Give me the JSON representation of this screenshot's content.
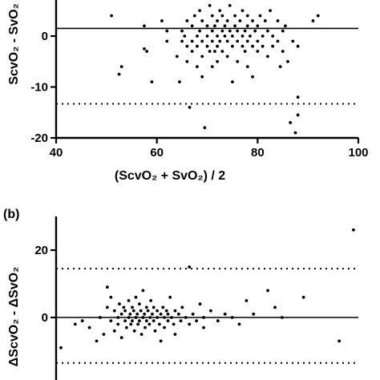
{
  "chart_data": [
    {
      "type": "scatter",
      "panel_label": "",
      "xlabel": "(ScvO₂ + SvO₂) / 2",
      "ylabel": "ScvO₂ - SvO₂",
      "xlim": [
        40,
        100
      ],
      "ylim": [
        -20,
        10
      ],
      "xticks": [
        40,
        60,
        80,
        100
      ],
      "yticks": [
        -20,
        -10,
        0
      ],
      "mean_line": 1.5,
      "limit_lines": [
        -13.3
      ],
      "points": [
        [
          51,
          4
        ],
        [
          53,
          -6
        ],
        [
          52.5,
          -7.5
        ],
        [
          57.5,
          2
        ],
        [
          57.5,
          -2.5
        ],
        [
          58,
          -3
        ],
        [
          59,
          -9
        ],
        [
          61,
          3
        ],
        [
          62,
          1
        ],
        [
          62,
          -1
        ],
        [
          64,
          -4
        ],
        [
          64.5,
          -9
        ],
        [
          65,
          1
        ],
        [
          65,
          -1
        ],
        [
          65.5,
          0
        ],
        [
          66,
          3
        ],
        [
          66,
          -2
        ],
        [
          66,
          -5
        ],
        [
          66.5,
          -14
        ],
        [
          67,
          2
        ],
        [
          67,
          -1
        ],
        [
          67,
          -3
        ],
        [
          67.5,
          4
        ],
        [
          68,
          0
        ],
        [
          68,
          -2
        ],
        [
          68,
          -6
        ],
        [
          68.5,
          1
        ],
        [
          68.5,
          5
        ],
        [
          69,
          3
        ],
        [
          69,
          -1
        ],
        [
          69,
          -4
        ],
        [
          69,
          -8
        ],
        [
          69.5,
          -18
        ],
        [
          70,
          2
        ],
        [
          70,
          0
        ],
        [
          70,
          -2
        ],
        [
          70.5,
          6
        ],
        [
          70.5,
          -3
        ],
        [
          71,
          1
        ],
        [
          71,
          -1
        ],
        [
          71,
          4
        ],
        [
          71,
          -6
        ],
        [
          71.5,
          2
        ],
        [
          71.5,
          -3
        ],
        [
          72,
          0
        ],
        [
          72,
          3
        ],
        [
          72,
          -2
        ],
        [
          72,
          -5
        ],
        [
          72.5,
          5
        ],
        [
          72.5,
          -1
        ],
        [
          73,
          1
        ],
        [
          73,
          -3
        ],
        [
          73,
          4
        ],
        [
          73.5,
          2
        ],
        [
          73.5,
          0
        ],
        [
          74,
          -1
        ],
        [
          74,
          3
        ],
        [
          74,
          -4
        ],
        [
          74.5,
          1
        ],
        [
          74.5,
          6
        ],
        [
          75,
          0
        ],
        [
          75,
          -2
        ],
        [
          75,
          -9
        ],
        [
          75.5,
          2
        ],
        [
          75.5,
          4
        ],
        [
          76,
          -1
        ],
        [
          76,
          1
        ],
        [
          76,
          -5
        ],
        [
          76.5,
          3
        ],
        [
          77,
          0
        ],
        [
          77,
          -2
        ],
        [
          77,
          5
        ],
        [
          77.5,
          1
        ],
        [
          77.5,
          -3
        ],
        [
          78,
          2
        ],
        [
          78,
          -1
        ],
        [
          78,
          4
        ],
        [
          78,
          -6
        ],
        [
          78.5,
          0
        ],
        [
          79,
          3
        ],
        [
          79,
          -2
        ],
        [
          79,
          -8
        ],
        [
          79.5,
          1
        ],
        [
          80,
          2
        ],
        [
          80,
          -1
        ],
        [
          80,
          -3
        ],
        [
          80.5,
          4
        ],
        [
          81,
          0
        ],
        [
          81,
          -2
        ],
        [
          81.5,
          3
        ],
        [
          82,
          1
        ],
        [
          82,
          -4
        ],
        [
          82.5,
          5
        ],
        [
          83,
          0
        ],
        [
          83,
          -2
        ],
        [
          84,
          3
        ],
        [
          84,
          -1
        ],
        [
          84.5,
          -6
        ],
        [
          85,
          1
        ],
        [
          85,
          -3
        ],
        [
          85.5,
          2
        ],
        [
          86,
          -5
        ],
        [
          86.5,
          -17
        ],
        [
          87,
          -1
        ],
        [
          87.5,
          -19
        ],
        [
          88,
          -12
        ],
        [
          88,
          -15.5
        ],
        [
          88,
          -2
        ],
        [
          91,
          3
        ],
        [
          92,
          4
        ]
      ]
    },
    {
      "type": "scatter",
      "panel_label": "(b)",
      "xlabel": "",
      "ylabel": "ΔScvO₂ - ΔSvO₂",
      "ylim": [
        -20,
        30
      ],
      "yticks": [
        0,
        20
      ],
      "mean_line": 0,
      "limit_lines": [
        14.5,
        -13.5
      ],
      "points": [
        [
          -10,
          -9
        ],
        [
          -8,
          -2
        ],
        [
          -7,
          -1
        ],
        [
          -6,
          -3
        ],
        [
          -5,
          -7
        ],
        [
          -4.5,
          0
        ],
        [
          -4,
          -5
        ],
        [
          -3.5,
          9
        ],
        [
          -3.5,
          3
        ],
        [
          -3,
          -1
        ],
        [
          -3,
          6
        ],
        [
          -2.5,
          2
        ],
        [
          -2.5,
          -4
        ],
        [
          -2,
          0
        ],
        [
          -2,
          -2
        ],
        [
          -1.8,
          4
        ],
        [
          -1.5,
          1
        ],
        [
          -1.5,
          -6
        ],
        [
          -1.2,
          3
        ],
        [
          -1,
          -1
        ],
        [
          -1,
          2
        ],
        [
          -0.8,
          -3
        ],
        [
          -0.5,
          0
        ],
        [
          -0.5,
          5
        ],
        [
          -0.3,
          1
        ],
        [
          -0.2,
          -2
        ],
        [
          0,
          3
        ],
        [
          0,
          -1
        ],
        [
          0.2,
          2
        ],
        [
          0.3,
          -4
        ],
        [
          0.5,
          0
        ],
        [
          0.5,
          6
        ],
        [
          0.7,
          1
        ],
        [
          0.8,
          -2
        ],
        [
          1,
          4
        ],
        [
          1,
          -1
        ],
        [
          1.2,
          2
        ],
        [
          1.3,
          -5
        ],
        [
          1.5,
          0
        ],
        [
          1.5,
          8
        ],
        [
          1.7,
          1
        ],
        [
          1.8,
          -3
        ],
        [
          2,
          3
        ],
        [
          2,
          -1
        ],
        [
          2.2,
          2
        ],
        [
          2.4,
          -2
        ],
        [
          2.5,
          0
        ],
        [
          2.6,
          5
        ],
        [
          2.8,
          1
        ],
        [
          3,
          -1
        ],
        [
          3,
          3
        ],
        [
          3.2,
          -4
        ],
        [
          3.5,
          2
        ],
        [
          3.5,
          0
        ],
        [
          3.8,
          -2
        ],
        [
          4,
          1
        ],
        [
          4,
          -7
        ],
        [
          4.3,
          3
        ],
        [
          4.5,
          0
        ],
        [
          4.5,
          -3
        ],
        [
          4.8,
          2
        ],
        [
          5,
          1
        ],
        [
          5,
          -1
        ],
        [
          5.3,
          6
        ],
        [
          5.5,
          0
        ],
        [
          5.8,
          -2
        ],
        [
          6,
          2
        ],
        [
          6,
          -5
        ],
        [
          6.5,
          1
        ],
        [
          6.8,
          -1
        ],
        [
          7,
          3
        ],
        [
          7.5,
          0
        ],
        [
          8,
          -2
        ],
        [
          8,
          15
        ],
        [
          8.5,
          1
        ],
        [
          9,
          -1
        ],
        [
          9.5,
          4
        ],
        [
          10,
          0
        ],
        [
          10,
          -3
        ],
        [
          11,
          2
        ],
        [
          12,
          -1
        ],
        [
          13,
          1
        ],
        [
          14,
          0
        ],
        [
          15,
          -2
        ],
        [
          16,
          5
        ],
        [
          17,
          1
        ],
        [
          19,
          8
        ],
        [
          20,
          3
        ],
        [
          21,
          0
        ],
        [
          24,
          6
        ],
        [
          29,
          -7
        ],
        [
          31,
          26
        ]
      ]
    }
  ]
}
